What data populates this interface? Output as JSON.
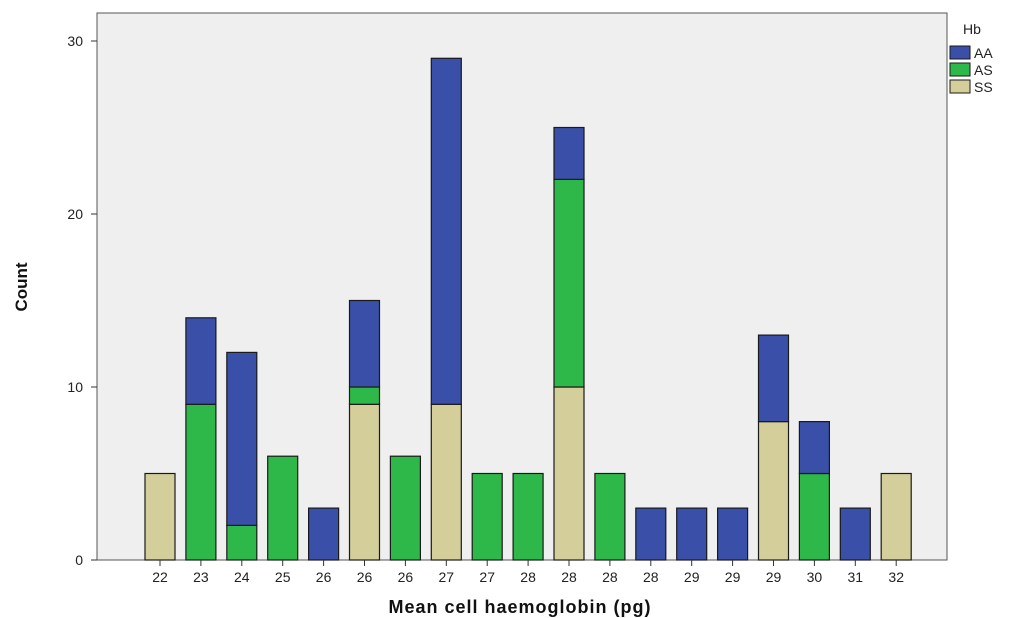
{
  "chart_data": {
    "type": "bar",
    "stacked": true,
    "xlabel": "Mean cell haemoglobin (pg)",
    "ylabel": "Count",
    "ylim": [
      0,
      30
    ],
    "yticks": [
      "0",
      "10",
      "20",
      "30"
    ],
    "grid": false,
    "legend_position": "right",
    "legend_title": "Hb",
    "categories": [
      "22",
      "23",
      "24",
      "25",
      "26",
      "26",
      "26",
      "27",
      "27",
      "28",
      "28",
      "28",
      "28",
      "29",
      "29",
      "29",
      "30",
      "31",
      "32"
    ],
    "series": [
      {
        "name": "SS",
        "color": "#d4cf9a",
        "values": [
          5,
          0,
          0,
          0,
          0,
          9,
          0,
          9,
          0,
          0,
          10,
          0,
          0,
          0,
          0,
          8,
          0,
          0,
          5
        ]
      },
      {
        "name": "AS",
        "color": "#2fb84a",
        "values": [
          0,
          9,
          2,
          6,
          0,
          1,
          6,
          0,
          5,
          5,
          12,
          5,
          0,
          0,
          0,
          0,
          5,
          0,
          0
        ]
      },
      {
        "name": "AA",
        "color": "#3a4fa8",
        "values": [
          0,
          5,
          10,
          0,
          3,
          5,
          0,
          20,
          0,
          0,
          3,
          0,
          3,
          3,
          3,
          5,
          3,
          3,
          0
        ]
      }
    ],
    "legend_order": [
      "AA",
      "AS",
      "SS"
    ]
  },
  "colors": {
    "plot_background": "#efefef"
  }
}
